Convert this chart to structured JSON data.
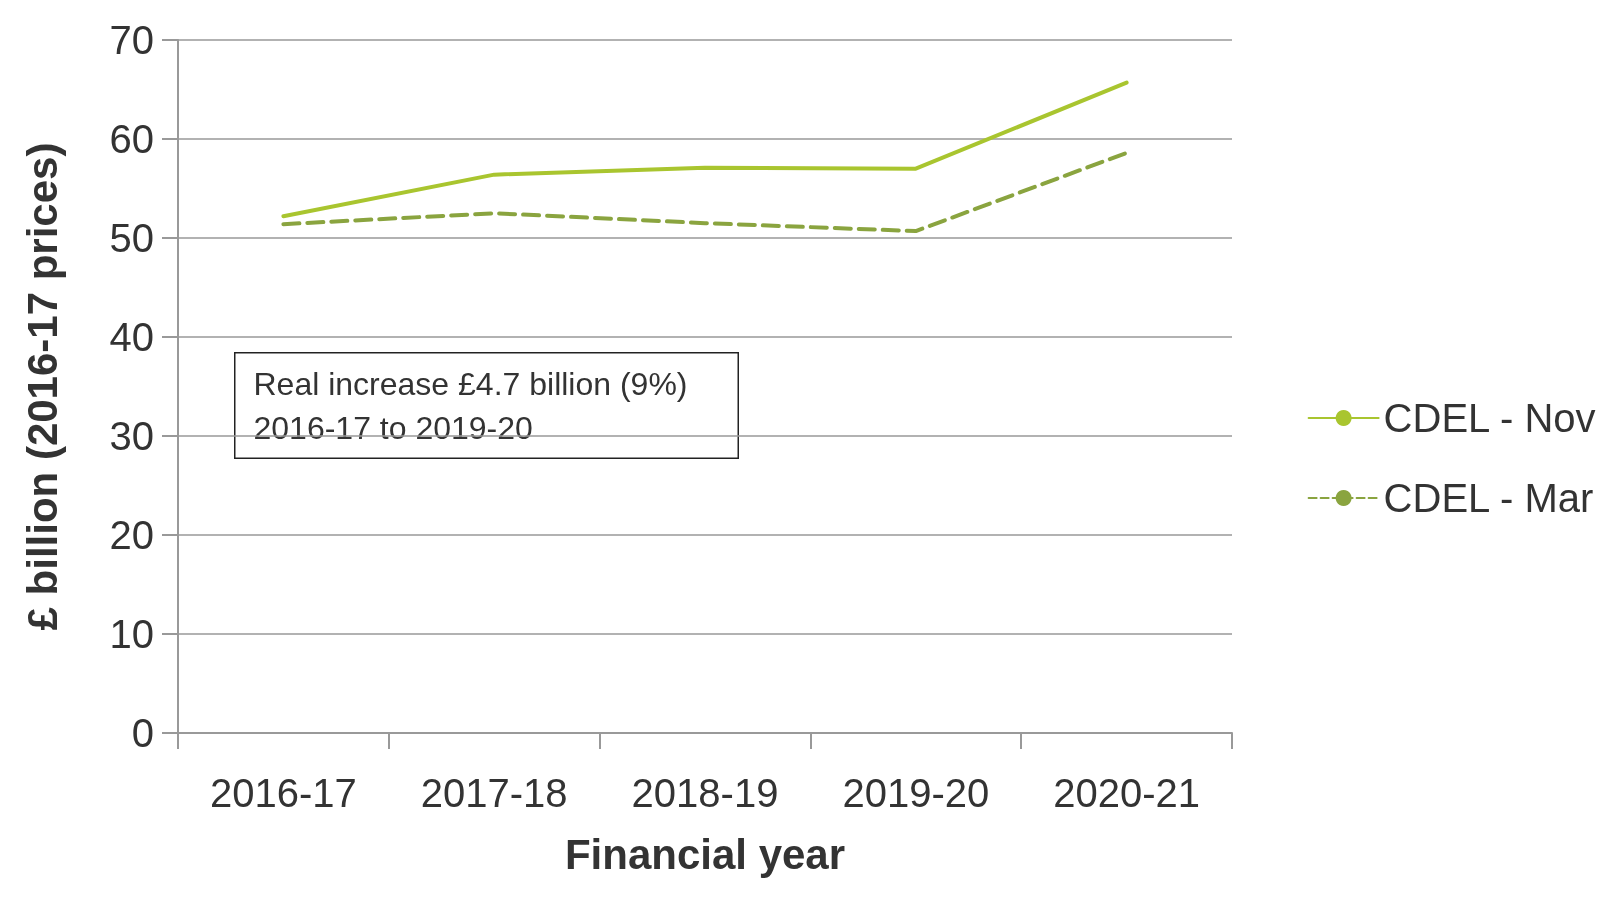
{
  "chart_data": {
    "type": "line",
    "xlabel": "Financial year",
    "ylabel": "£ billion (2016-17 prices)",
    "categories": [
      "2016-17",
      "2017-18",
      "2018-19",
      "2019-20",
      "2020-21"
    ],
    "series": [
      {
        "name": "CDEL - Nov",
        "color": "#a9c52f",
        "values": [
          52.2,
          56.4,
          57.1,
          57.0,
          65.7
        ],
        "line_style": "solid"
      },
      {
        "name": "CDEL - Mar",
        "color": "#8aa43f",
        "values": [
          51.4,
          52.5,
          51.5,
          50.7,
          58.6
        ],
        "line_style": "dashed"
      }
    ],
    "ylim": [
      0,
      70
    ],
    "yticks": [
      0,
      10,
      20,
      30,
      40,
      50,
      60,
      70
    ],
    "grid": "y",
    "legend": "right",
    "marker": "none",
    "annotations": [
      "Real increase £4.7 billion (9%)\n2016-17 to 2019-20"
    ]
  }
}
